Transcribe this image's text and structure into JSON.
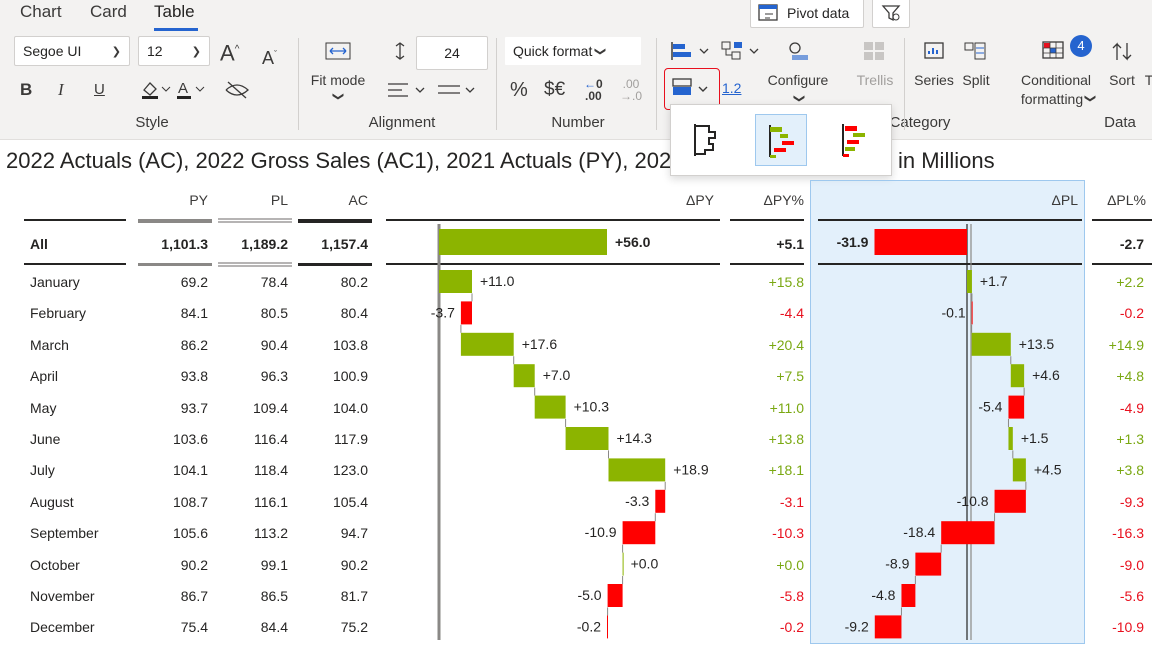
{
  "ribbon": {
    "tabs": [
      "Chart",
      "Card",
      "Table"
    ],
    "active_tab": "Table",
    "pivot_data_label": "Pivot data",
    "font_name": "Segoe UI",
    "font_size": "12",
    "line_height_value": "24",
    "quick_format_label": "Quick format",
    "fit_mode_label": "Fit mode",
    "decimal_label": "1.2",
    "configure_label": "Configure",
    "trellis_label": "Trellis",
    "series_label": "Series",
    "split_label": "Split",
    "conditional_formatting_label": [
      "Conditional",
      "formatting"
    ],
    "conditional_badge": "4",
    "sort_label": "Sort",
    "bold_label": "B",
    "italic_label": "I",
    "underline_label": "U",
    "percent_label": "%",
    "currency_label": "$€",
    "dec_up_label": ".00",
    "dec_down_label": ".0",
    "groups": {
      "style": "Style",
      "alignment": "Alignment",
      "number": "Number",
      "category": "Category",
      "data": "Data"
    }
  },
  "report_title": "2022 Actuals (AC), 2022 Gross Sales (AC1), 2021 Actuals (PY), 202",
  "report_title_suffix": "in Millions",
  "table": {
    "headers": {
      "py": "PY",
      "pl": "PL",
      "ac": "AC",
      "dpy": "ΔPY",
      "dpypct": "ΔPY%",
      "dpl": "ΔPL",
      "dplpct": "ΔPL%"
    },
    "total": {
      "label": "All",
      "py": "1,101.3",
      "pl": "1,189.2",
      "ac": "1,157.4",
      "dpy": 56.0,
      "dpy_label": "+56.0",
      "dpypct": "+5.1",
      "dpl": -31.9,
      "dpl_label": "-31.9",
      "dplpct": "-2.7"
    },
    "rows": [
      {
        "label": "January",
        "py": "69.2",
        "pl": "78.4",
        "ac": "80.2",
        "dpy": 11.0,
        "dpy_label": "+11.0",
        "dpypct": "+15.8",
        "dpl": 1.7,
        "dpl_label": "+1.7",
        "dplpct": "+2.2"
      },
      {
        "label": "February",
        "py": "84.1",
        "pl": "80.5",
        "ac": "80.4",
        "dpy": -3.7,
        "dpy_label": "-3.7",
        "dpypct": "-4.4",
        "dpl": -0.1,
        "dpl_label": "-0.1",
        "dplpct": "-0.2"
      },
      {
        "label": "March",
        "py": "86.2",
        "pl": "90.4",
        "ac": "103.8",
        "dpy": 17.6,
        "dpy_label": "+17.6",
        "dpypct": "+20.4",
        "dpl": 13.5,
        "dpl_label": "+13.5",
        "dplpct": "+14.9"
      },
      {
        "label": "April",
        "py": "93.8",
        "pl": "96.3",
        "ac": "100.9",
        "dpy": 7.0,
        "dpy_label": "+7.0",
        "dpypct": "+7.5",
        "dpl": 4.6,
        "dpl_label": "+4.6",
        "dplpct": "+4.8"
      },
      {
        "label": "May",
        "py": "93.7",
        "pl": "109.4",
        "ac": "104.0",
        "dpy": 10.3,
        "dpy_label": "+10.3",
        "dpypct": "+11.0",
        "dpl": -5.4,
        "dpl_label": "-5.4",
        "dplpct": "-4.9"
      },
      {
        "label": "June",
        "py": "103.6",
        "pl": "116.4",
        "ac": "117.9",
        "dpy": 14.3,
        "dpy_label": "+14.3",
        "dpypct": "+13.8",
        "dpl": 1.5,
        "dpl_label": "+1.5",
        "dplpct": "+1.3"
      },
      {
        "label": "July",
        "py": "104.1",
        "pl": "118.4",
        "ac": "123.0",
        "dpy": 18.9,
        "dpy_label": "+18.9",
        "dpypct": "+18.1",
        "dpl": 4.5,
        "dpl_label": "+4.5",
        "dplpct": "+3.8"
      },
      {
        "label": "August",
        "py": "108.7",
        "pl": "116.1",
        "ac": "105.4",
        "dpy": -3.3,
        "dpy_label": "-3.3",
        "dpypct": "-3.1",
        "dpl": -10.8,
        "dpl_label": "-10.8",
        "dplpct": "-9.3"
      },
      {
        "label": "September",
        "py": "105.6",
        "pl": "113.2",
        "ac": "94.7",
        "dpy": -10.9,
        "dpy_label": "-10.9",
        "dpypct": "-10.3",
        "dpl": -18.4,
        "dpl_label": "-18.4",
        "dplpct": "-16.3"
      },
      {
        "label": "October",
        "py": "90.2",
        "pl": "99.1",
        "ac": "90.2",
        "dpy": 0.0,
        "dpy_label": "+0.0",
        "dpypct": "+0.0",
        "dpl": -8.9,
        "dpl_label": "-8.9",
        "dplpct": "-9.0"
      },
      {
        "label": "November",
        "py": "86.7",
        "pl": "86.5",
        "ac": "81.7",
        "dpy": -5.0,
        "dpy_label": "-5.0",
        "dpypct": "-5.8",
        "dpl": -4.8,
        "dpl_label": "-4.8",
        "dplpct": "-5.6"
      },
      {
        "label": "December",
        "py": "75.4",
        "pl": "84.4",
        "ac": "75.2",
        "dpy": -0.2,
        "dpy_label": "-0.2",
        "dpypct": "-0.2",
        "dpl": -9.2,
        "dpl_label": "-9.2",
        "dplpct": "-10.9"
      }
    ]
  },
  "colors": {
    "positive": "#8cb400",
    "negative": "#ff0000",
    "accent": "#2564cf",
    "highlight_border": "#e8101e"
  }
}
